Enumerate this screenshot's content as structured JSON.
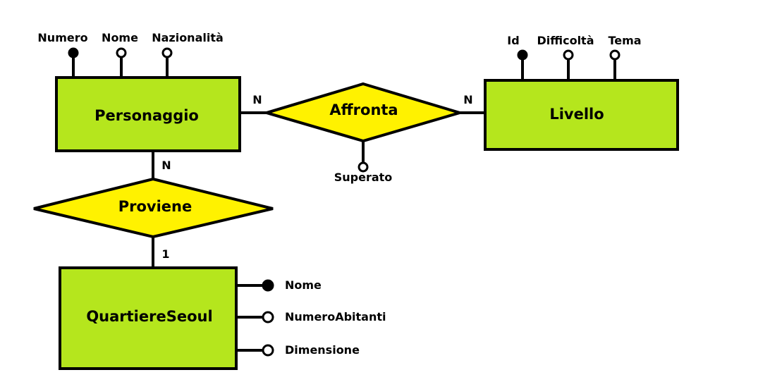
{
  "entities": {
    "personaggio": {
      "name": "Personaggio",
      "attributes": {
        "numero": "Numero",
        "nome": "Nome",
        "nazionalita": "Nazionalità"
      }
    },
    "livello": {
      "name": "Livello",
      "attributes": {
        "id": "Id",
        "difficolta": "Difficoltà",
        "tema": "Tema"
      }
    },
    "quartiere": {
      "name": "QuartiereSeoul",
      "attributes": {
        "nome": "Nome",
        "numero_abitanti": "NumeroAbitanti",
        "dimensione": "Dimensione"
      }
    }
  },
  "relationships": {
    "affronta": {
      "name": "Affronta",
      "attribute": "Superato",
      "card_left": "N",
      "card_right": "N"
    },
    "proviene": {
      "name": "Proviene",
      "card_top": "N",
      "card_bottom": "1"
    }
  },
  "colors": {
    "entity_fill": "#b5e61d",
    "relationship_fill": "#fff200",
    "line": "#000000"
  }
}
